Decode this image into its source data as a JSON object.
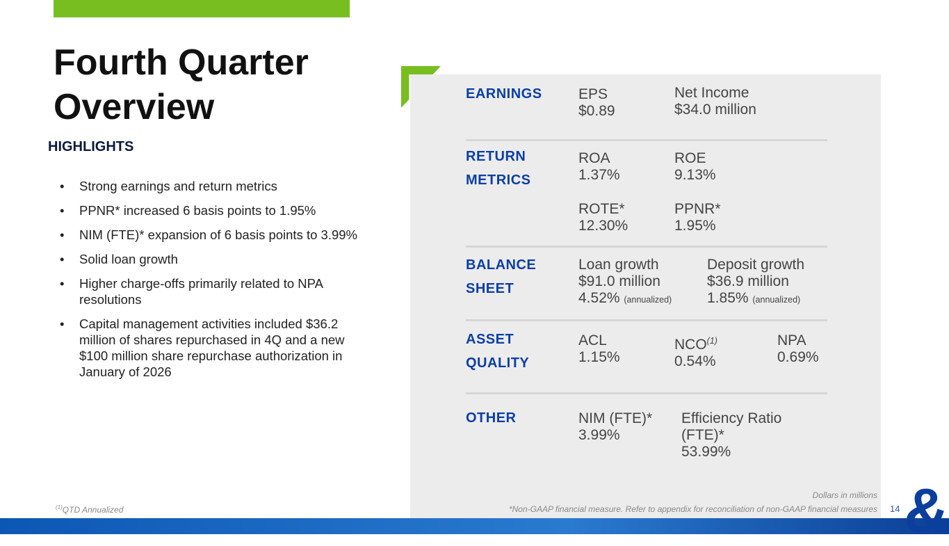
{
  "title": "Fourth Quarter Overview",
  "highlights_heading": "HIGHLIGHTS",
  "bullets": [
    "Strong earnings and return metrics",
    "PPNR* increased 6 basis points to 1.95%",
    "NIM (FTE)* expansion of 6 basis points to 3.99%",
    "Solid loan growth",
    "Higher charge-offs primarily related to NPA resolutions",
    "Capital management activities included $36.2 million of shares repurchased in 4Q and a new $100 million share repurchase authorization in January of 2026"
  ],
  "sections": {
    "earnings": {
      "label": "EARNINGS",
      "eps_label": "EPS",
      "eps": "$0.89",
      "ni_label": "Net Income",
      "ni": "$34.0 million"
    },
    "returns": {
      "label1": "RETURN",
      "label2": "METRICS",
      "roa_label": "ROA",
      "roa": "1.37%",
      "roe_label": "ROE",
      "roe": "9.13%",
      "rote_label": "ROTE*",
      "rote": "12.30%",
      "ppnr_label": "PPNR*",
      "ppnr": "1.95%"
    },
    "balance": {
      "label1": "BALANCE",
      "label2": "SHEET",
      "loan_label": "Loan growth",
      "loan": "$91.0 million",
      "loan_pct": "4.52%",
      "dep_label": "Deposit growth",
      "dep": "$36.9 million",
      "dep_pct": "1.85%",
      "annualized": "(annualized)"
    },
    "asset": {
      "label1": "ASSET",
      "label2": "QUALITY",
      "acl_label": "ACL",
      "acl": "1.15%",
      "nco_label": "NCO",
      "nco_sup": "(1)",
      "nco": "0.54%",
      "npa_label": "NPA",
      "npa": "0.69%"
    },
    "other": {
      "label": "OTHER",
      "nim_label": "NIM (FTE)*",
      "nim": "3.99%",
      "eff_label1": "Efficiency Ratio",
      "eff_label2": "(FTE)*",
      "eff": "53.99%"
    }
  },
  "footer": {
    "sup": "(1)",
    "note": "QTD Annualized",
    "dollars": "Dollars in millions",
    "nongaap": "*Non-GAAP financial measure. Refer to appendix for reconciliation of non-GAAP financial measures",
    "page": "14"
  },
  "colors": {
    "green": "#78be20",
    "blue": "#0b3fa4"
  }
}
